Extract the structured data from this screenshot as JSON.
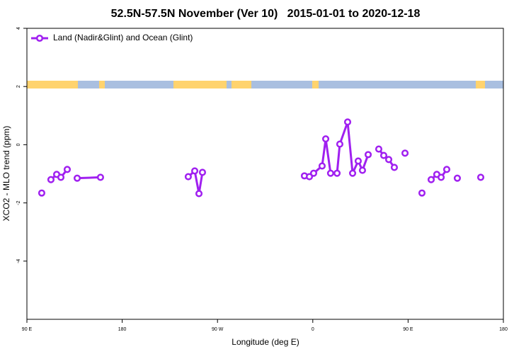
{
  "chart_data": {
    "type": "line",
    "title": "52.5N-57.5N November (Ver 10)   2015-01-01 to 2020-12-18",
    "x_label": "Longitude (deg E)",
    "y_label": "XCO2 - MLO trend (ppm)",
    "xlim": [
      90,
      540
    ],
    "ylim": [
      -6,
      4
    ],
    "xticks": [
      {
        "value": 90,
        "label": "90 E"
      },
      {
        "value": 180,
        "label": "180"
      },
      {
        "value": 270,
        "label": "90 W"
      },
      {
        "value": 360,
        "label": "0"
      },
      {
        "value": 450,
        "label": "90 E"
      },
      {
        "value": 540,
        "label": "180"
      }
    ],
    "yticks": [
      4,
      2,
      0,
      -2,
      -4
    ],
    "legend_position": "upper left",
    "x": [
      104.0,
      null,
      112.7,
      118.1,
      122.1,
      128.1,
      null,
      137.5,
      159.5,
      null,
      242.4,
      248.5,
      252.5,
      255.8,
      null,
      352.1,
      356.8,
      360.8,
      368.8,
      372.2,
      376.8,
      382.9,
      385.5,
      392.9,
      397.6,
      402.9,
      406.9,
      412.3,
      null,
      422.3,
      427.0,
      431.7,
      437.0,
      null,
      447.1,
      null,
      463.1,
      null,
      471.8,
      477.1,
      481.2,
      486.5,
      null,
      496.5,
      null,
      518.6
    ],
    "series": [
      {
        "name": "Land (Nadir&Glint) and Ocean (Glint)",
        "color": "#a020f0",
        "values": [
          -1.66,
          null,
          -1.2,
          -1.02,
          -1.12,
          -0.85,
          null,
          -1.15,
          -1.12,
          null,
          -1.1,
          -0.9,
          -1.68,
          -0.95,
          null,
          -1.07,
          -1.1,
          -0.98,
          -0.73,
          0.2,
          -0.98,
          -0.98,
          0.02,
          0.78,
          -0.98,
          -0.56,
          -0.88,
          -0.34,
          null,
          -0.15,
          -0.37,
          -0.51,
          -0.78,
          null,
          -0.29,
          null,
          -1.66,
          null,
          -1.2,
          -1.02,
          -1.12,
          -0.85,
          null,
          -1.15,
          null,
          -1.12
        ]
      }
    ]
  }
}
